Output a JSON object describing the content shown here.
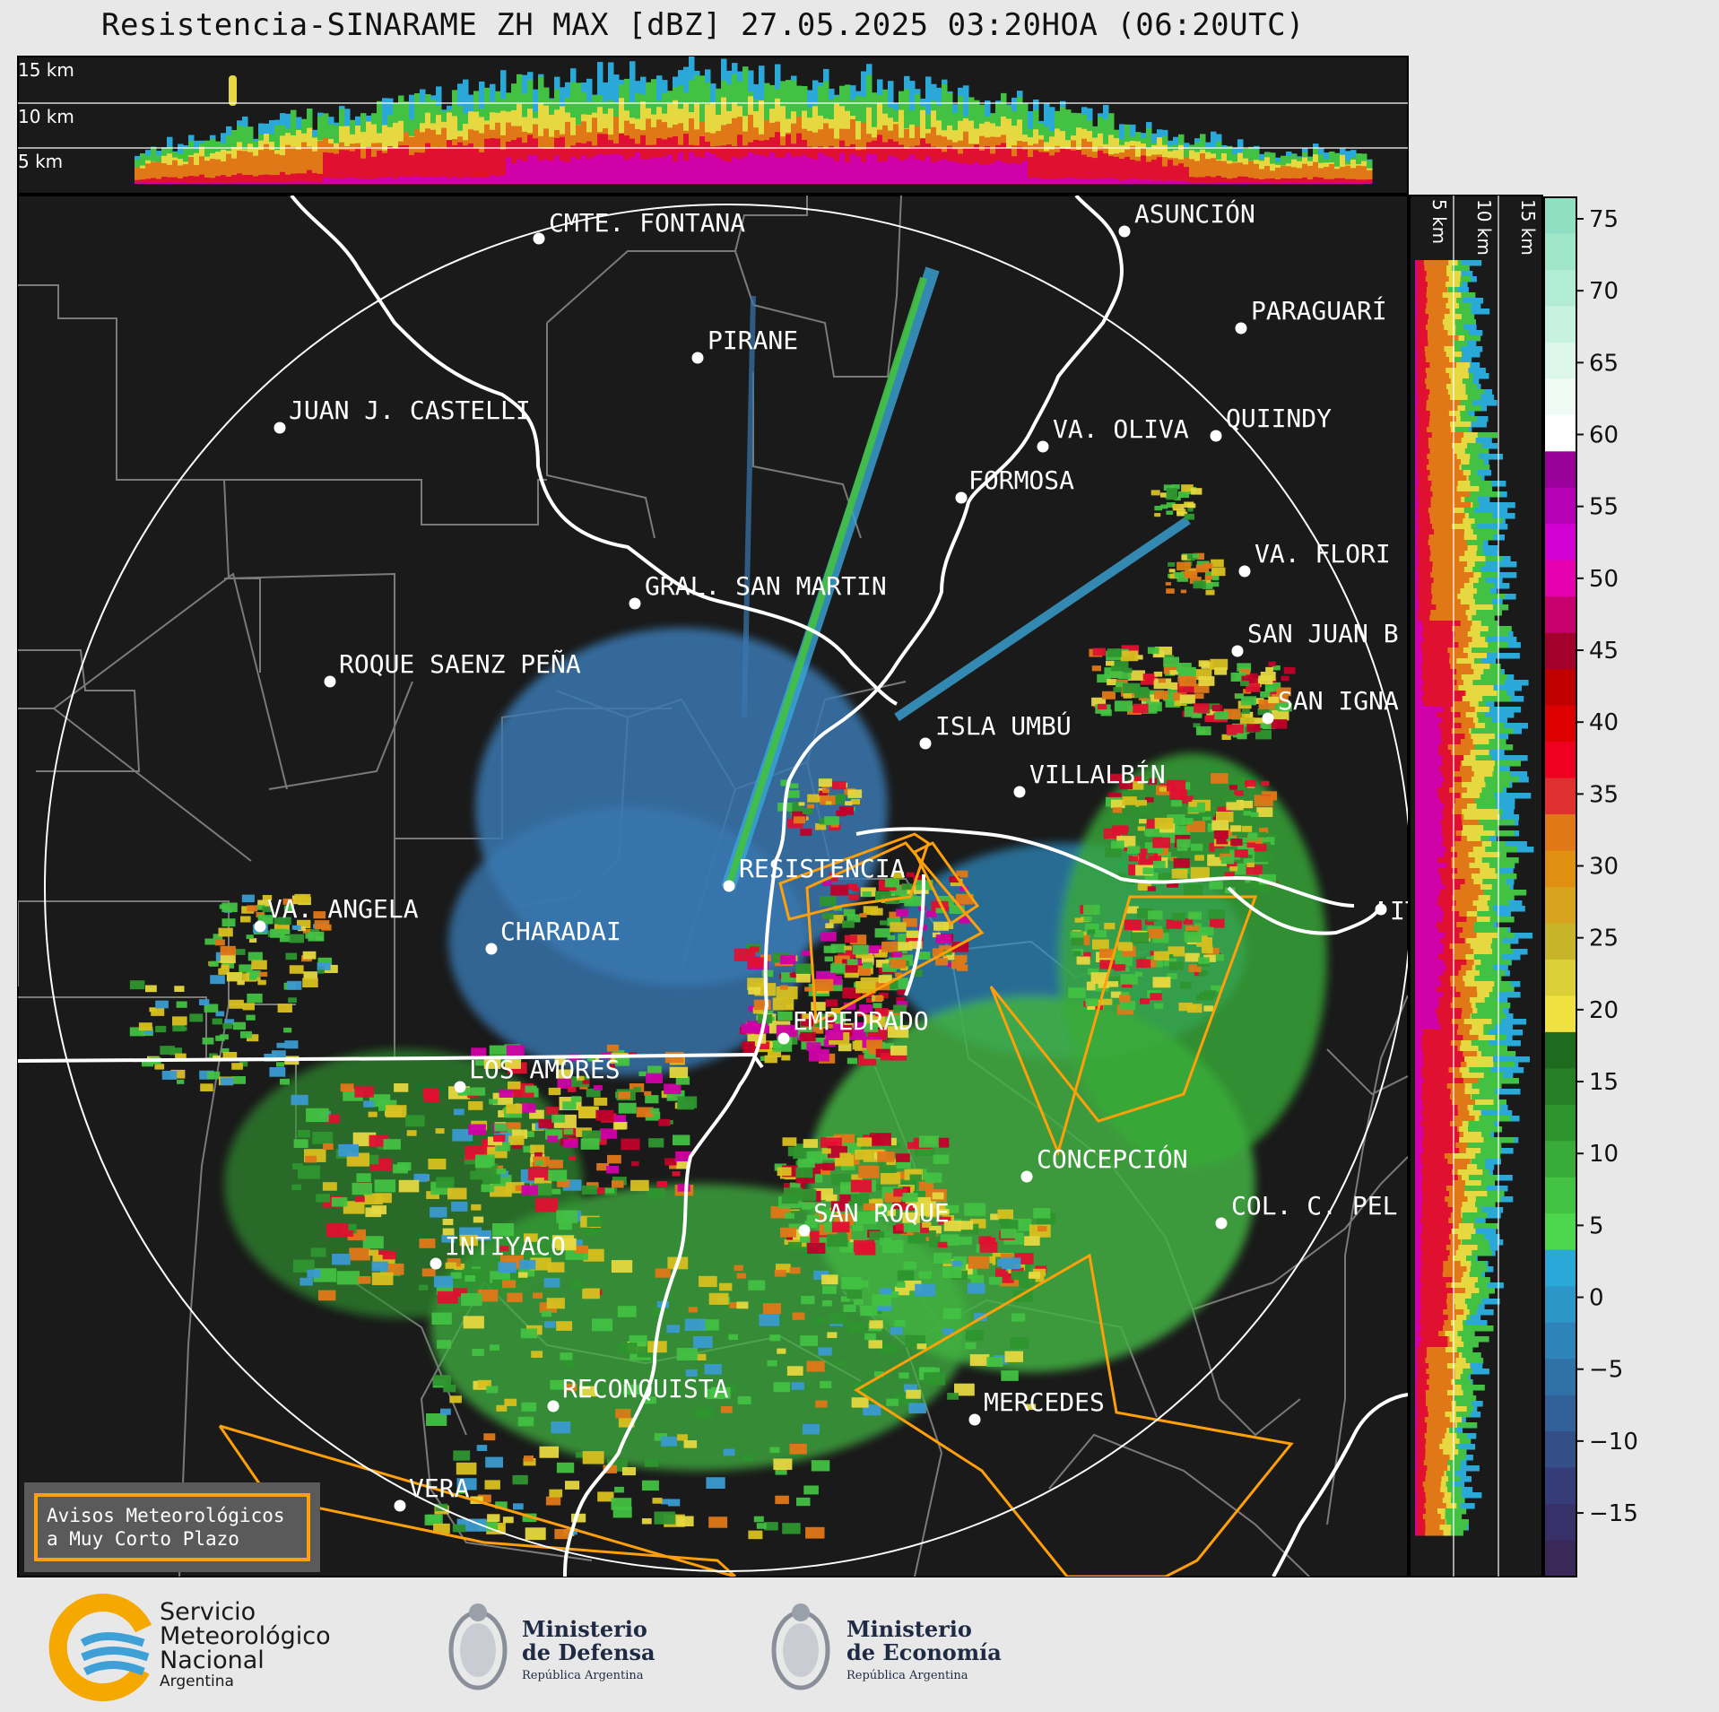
{
  "header": {
    "title": "Resistencia-SINARAME ZH MAX [dBZ] 27.05.2025 03:20HOA (06:20UTC)"
  },
  "cross_section_top": {
    "labels": [
      "15 km",
      "10 km",
      "5 km"
    ]
  },
  "cross_section_right": {
    "labels": [
      "5 km",
      "10 km",
      "15 km"
    ]
  },
  "colorbar": {
    "ticks": [
      "75",
      "70",
      "65",
      "60",
      "55",
      "50",
      "45",
      "40",
      "35",
      "30",
      "25",
      "20",
      "15",
      "10",
      "5",
      "0",
      "−5",
      "−10",
      "−15"
    ],
    "colors": [
      "#8fe0c2",
      "#a0e6c9",
      "#b3ecd4",
      "#c8f2e0",
      "#dcf7ea",
      "#f0fbf6",
      "#ffffff",
      "#9a009a",
      "#b500b5",
      "#d200d2",
      "#e600b0",
      "#c8006e",
      "#a4002c",
      "#c00000",
      "#dc0000",
      "#f00020",
      "#e03030",
      "#e07818",
      "#e08f10",
      "#d8a420",
      "#c8b428",
      "#dcd038",
      "#f0e040",
      "#1e6a1e",
      "#257f25",
      "#2e952e",
      "#38ab38",
      "#42c142",
      "#4cd74c",
      "#2aa8d8",
      "#2c96c8",
      "#2e84b8",
      "#3072a8",
      "#326098",
      "#344e88",
      "#363c78",
      "#383068",
      "#3a2858"
    ]
  },
  "cities": [
    {
      "name": "CMTE. FONTANA"
    },
    {
      "name": "ASUNCIÓN"
    },
    {
      "name": "PARAGUARÍ"
    },
    {
      "name": "PIRANE"
    },
    {
      "name": "JUAN J. CASTELLI"
    },
    {
      "name": "VA. OLIVA"
    },
    {
      "name": "QUIINDY"
    },
    {
      "name": "FORMOSA"
    },
    {
      "name": "VA. FLORI"
    },
    {
      "name": "GRAL. SAN MARTIN"
    },
    {
      "name": "SAN JUAN B"
    },
    {
      "name": "ROQUE SAENZ PEÑA"
    },
    {
      "name": "SAN IGNA"
    },
    {
      "name": "ISLA UMBÚ"
    },
    {
      "name": "VILLALBÍN"
    },
    {
      "name": "RESISTENCIA"
    },
    {
      "name": "VA. ANGELA"
    },
    {
      "name": "CHARADAI"
    },
    {
      "name": "IT"
    },
    {
      "name": "EMPEDRADO"
    },
    {
      "name": "LOS AMORES"
    },
    {
      "name": "CONCEPCIÓN"
    },
    {
      "name": "SAN ROQUE"
    },
    {
      "name": "COL. C. PEL"
    },
    {
      "name": "INTIYACO"
    },
    {
      "name": "RECONQUISTA"
    },
    {
      "name": "MERCEDES"
    },
    {
      "name": "VERA"
    }
  ],
  "legend": {
    "line1": "Avisos Meteorológicos",
    "line2": "a Muy Corto Plazo"
  },
  "footer": {
    "smn": {
      "l1": "Servicio",
      "l2": "Meteorológico",
      "l3": "Nacional",
      "l4": "Argentina"
    },
    "defensa": {
      "l1": "Ministerio",
      "l2": "de Defensa",
      "l3": "República Argentina"
    },
    "economia": {
      "l1": "Ministerio",
      "l2": "de Economía",
      "l3": "República Argentina"
    }
  }
}
